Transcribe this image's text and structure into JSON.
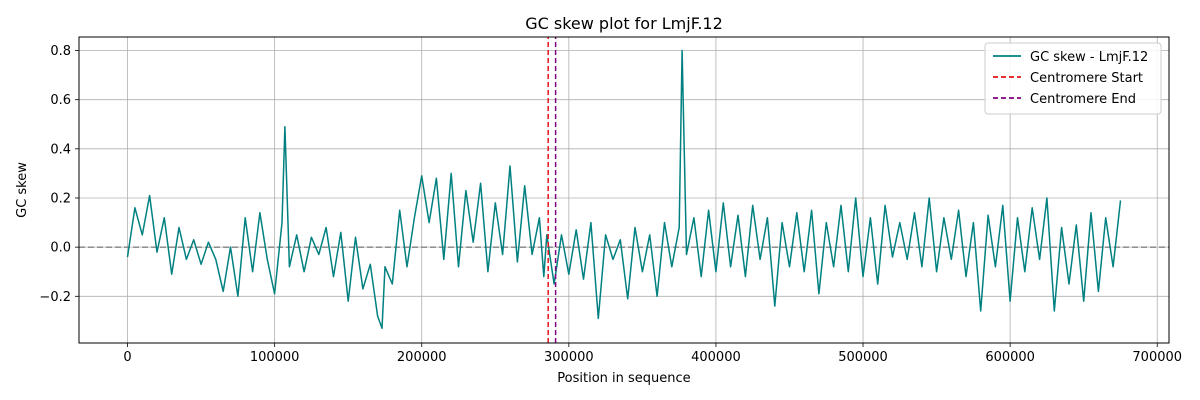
{
  "chart_data": {
    "type": "line",
    "title": "GC skew plot for LmjF.12",
    "xlabel": "Position in sequence",
    "ylabel": "GC skew",
    "xlim": [
      -33000,
      708000
    ],
    "ylim": [
      -0.39,
      0.855
    ],
    "x_ticks": [
      0,
      100000,
      200000,
      300000,
      400000,
      500000,
      600000,
      700000
    ],
    "x_tick_labels": [
      "0",
      "100000",
      "200000",
      "300000",
      "400000",
      "500000",
      "600000",
      "700000"
    ],
    "y_ticks": [
      -0.2,
      0.0,
      0.2,
      0.4,
      0.6,
      0.8
    ],
    "y_tick_labels": [
      "−0.2",
      "0.0",
      "0.2",
      "0.4",
      "0.6",
      "0.8"
    ],
    "grid": true,
    "legend_position": "top-right",
    "zero_line": {
      "y": 0,
      "color": "#808080",
      "style": "dashed"
    },
    "series": [
      {
        "name": "GC skew - LmjF.12",
        "color": "#008080",
        "style": "solid",
        "x": [
          0,
          5000,
          10000,
          15000,
          20000,
          25000,
          30000,
          35000,
          40000,
          45000,
          50000,
          55000,
          60000,
          65000,
          70000,
          75000,
          80000,
          85000,
          90000,
          95000,
          100000,
          105000,
          107000,
          110000,
          115000,
          120000,
          125000,
          130000,
          135000,
          140000,
          145000,
          150000,
          155000,
          160000,
          165000,
          170000,
          173000,
          175000,
          180000,
          185000,
          190000,
          195000,
          200000,
          205000,
          210000,
          215000,
          220000,
          225000,
          230000,
          235000,
          240000,
          245000,
          250000,
          255000,
          260000,
          265000,
          270000,
          275000,
          280000,
          283000,
          285000,
          290000,
          295000,
          300000,
          305000,
          310000,
          315000,
          320000,
          325000,
          330000,
          335000,
          340000,
          345000,
          350000,
          355000,
          360000,
          365000,
          370000,
          375000,
          377000,
          380000,
          385000,
          390000,
          395000,
          400000,
          405000,
          410000,
          415000,
          420000,
          425000,
          430000,
          435000,
          440000,
          445000,
          450000,
          455000,
          460000,
          465000,
          470000,
          475000,
          480000,
          485000,
          490000,
          495000,
          500000,
          505000,
          510000,
          515000,
          520000,
          525000,
          530000,
          535000,
          540000,
          545000,
          550000,
          555000,
          560000,
          565000,
          570000,
          575000,
          580000,
          585000,
          590000,
          595000,
          600000,
          605000,
          610000,
          615000,
          620000,
          625000,
          630000,
          635000,
          640000,
          645000,
          650000,
          655000,
          660000,
          665000,
          670000,
          675000
        ],
        "y": [
          -0.04,
          0.16,
          0.05,
          0.21,
          -0.02,
          0.12,
          -0.11,
          0.08,
          -0.05,
          0.03,
          -0.07,
          0.02,
          -0.05,
          -0.18,
          0.0,
          -0.2,
          0.12,
          -0.1,
          0.14,
          -0.05,
          -0.19,
          0.1,
          0.49,
          -0.08,
          0.05,
          -0.1,
          0.04,
          -0.03,
          0.08,
          -0.12,
          0.06,
          -0.22,
          0.04,
          -0.17,
          -0.07,
          -0.28,
          -0.33,
          -0.08,
          -0.15,
          0.15,
          -0.08,
          0.12,
          0.29,
          0.1,
          0.28,
          -0.05,
          0.3,
          -0.08,
          0.23,
          0.02,
          0.26,
          -0.1,
          0.18,
          -0.03,
          0.33,
          -0.06,
          0.25,
          -0.03,
          0.12,
          -0.12,
          0.05,
          -0.15,
          0.05,
          -0.11,
          0.07,
          -0.13,
          0.1,
          -0.29,
          0.05,
          -0.05,
          0.03,
          -0.21,
          0.08,
          -0.1,
          0.05,
          -0.2,
          0.1,
          -0.08,
          0.08,
          0.8,
          -0.03,
          0.12,
          -0.12,
          0.15,
          -0.1,
          0.18,
          -0.08,
          0.13,
          -0.12,
          0.17,
          -0.05,
          0.12,
          -0.24,
          0.1,
          -0.08,
          0.14,
          -0.1,
          0.15,
          -0.19,
          0.1,
          -0.08,
          0.17,
          -0.1,
          0.2,
          -0.12,
          0.12,
          -0.15,
          0.17,
          -0.04,
          0.1,
          -0.05,
          0.14,
          -0.08,
          0.2,
          -0.1,
          0.12,
          -0.05,
          0.15,
          -0.12,
          0.1,
          -0.26,
          0.13,
          -0.08,
          0.17,
          -0.22,
          0.12,
          -0.1,
          0.16,
          -0.05,
          0.2,
          -0.26,
          0.08,
          -0.15,
          0.09,
          -0.22,
          0.14,
          -0.18,
          0.12,
          -0.08,
          0.19
        ]
      },
      {
        "name": "Centromere Start",
        "color": "#e8131b",
        "style": "dashed",
        "x": [
          286000,
          286000
        ],
        "y": [
          -0.39,
          0.855
        ]
      },
      {
        "name": "Centromere End",
        "color": "#800080",
        "style": "dashed",
        "x": [
          291000,
          291000
        ],
        "y": [
          -0.39,
          0.855
        ]
      }
    ]
  }
}
